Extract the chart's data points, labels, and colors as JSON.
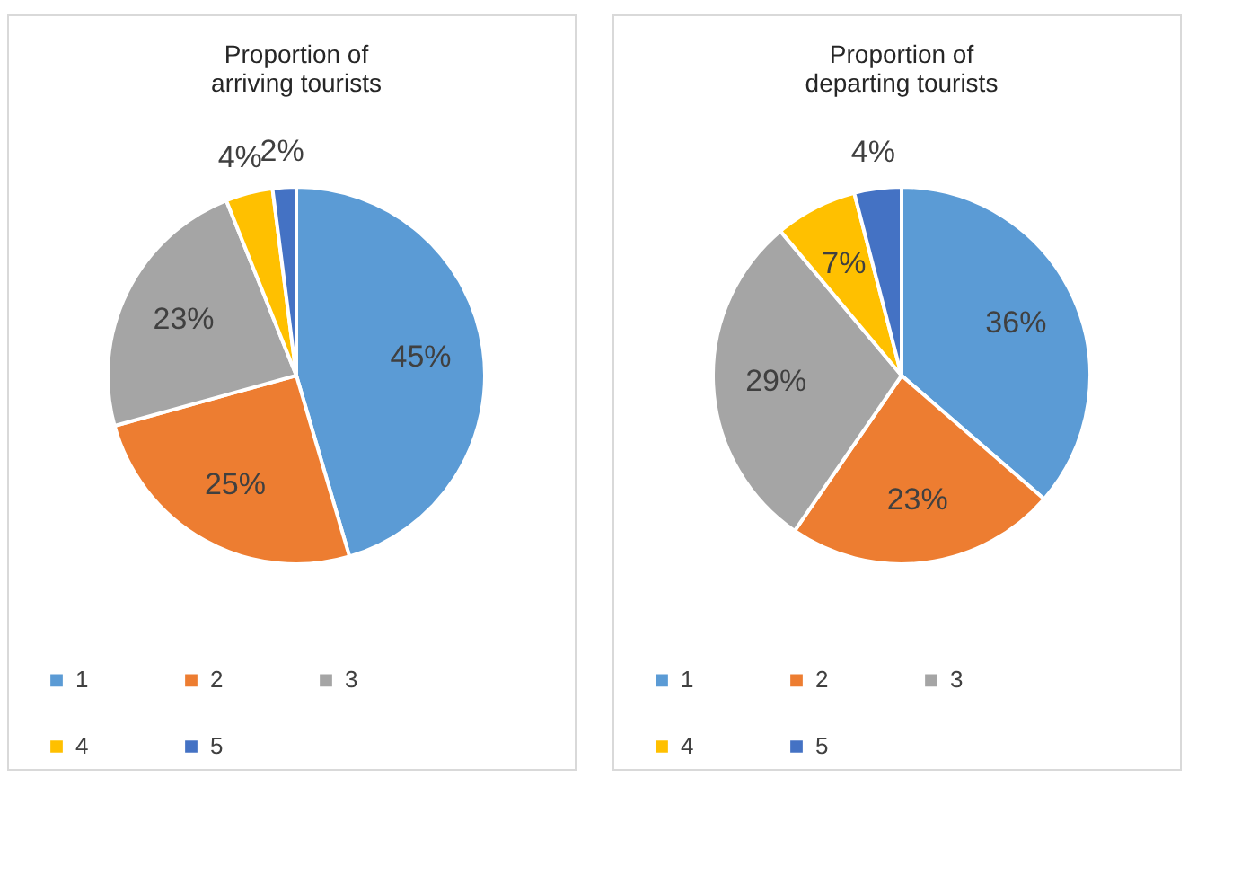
{
  "chart_data": [
    {
      "type": "pie",
      "title": "Proportion of arriving tourists",
      "categories": [
        "1",
        "2",
        "3",
        "4",
        "5"
      ],
      "values": [
        45,
        25,
        23,
        4,
        2
      ],
      "value_labels": [
        "45%",
        "25%",
        "23%",
        "4%",
        "2%"
      ],
      "colors": [
        "#5b9bd5",
        "#ed7d31",
        "#a5a5a5",
        "#ffc000",
        "#4472c4"
      ],
      "legend": "bottom"
    },
    {
      "type": "pie",
      "title": "Proportion of departing tourists",
      "categories": [
        "1",
        "2",
        "3",
        "4",
        "5"
      ],
      "values": [
        36,
        23,
        29,
        7,
        4
      ],
      "value_labels": [
        "36%",
        "23%",
        "29%",
        "7%",
        "4%"
      ],
      "colors": [
        "#5b9bd5",
        "#ed7d31",
        "#a5a5a5",
        "#ffc000",
        "#4472c4"
      ],
      "legend": "bottom"
    }
  ]
}
